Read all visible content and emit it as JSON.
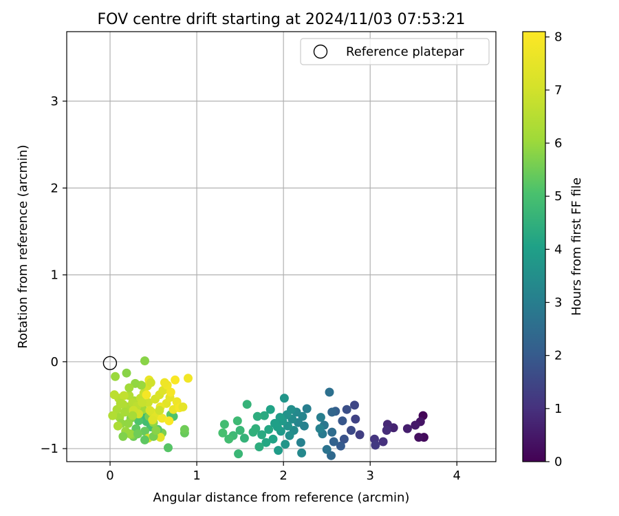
{
  "chart_data": {
    "type": "scatter",
    "title": "FOV centre drift starting at 2024/11/03 07:53:21",
    "xlabel": "Angular distance from reference (arcmin)",
    "ylabel": "Rotation from reference (arcmin)",
    "xlim": [
      -0.5,
      4.45
    ],
    "ylim": [
      -1.15,
      3.8
    ],
    "xticks": [
      "0",
      "1",
      "2",
      "3",
      "4"
    ],
    "yticks": [
      "−1",
      "0",
      "1",
      "2",
      "3"
    ],
    "grid": true,
    "legend": {
      "placement": "top-right",
      "entries": [
        "Reference platepar"
      ]
    },
    "colorbar": {
      "label": "Hours from first FF file",
      "min": 0,
      "max": 8.1,
      "ticks": [
        "0",
        "1",
        "2",
        "3",
        "4",
        "5",
        "6",
        "7",
        "8"
      ],
      "colormap": "viridis"
    },
    "reference_point": {
      "x": 0,
      "y": 0
    },
    "points": [
      [
        3.61,
        -0.62,
        0.1
      ],
      [
        3.62,
        -0.87,
        0.2
      ],
      [
        3.56,
        -0.87,
        0.3
      ],
      [
        3.58,
        -0.69,
        0.4
      ],
      [
        3.52,
        -0.73,
        0.5
      ],
      [
        3.43,
        -0.77,
        0.6
      ],
      [
        3.27,
        -0.76,
        0.7
      ],
      [
        3.2,
        -0.72,
        0.8
      ],
      [
        3.19,
        -0.79,
        0.9
      ],
      [
        3.15,
        -0.92,
        1.0
      ],
      [
        3.05,
        -0.89,
        1.1
      ],
      [
        3.06,
        -0.96,
        1.2
      ],
      [
        2.88,
        -0.84,
        1.3
      ],
      [
        2.83,
        -0.66,
        1.4
      ],
      [
        2.82,
        -0.5,
        1.5
      ],
      [
        2.78,
        -0.79,
        1.6
      ],
      [
        2.73,
        -0.55,
        1.7
      ],
      [
        2.7,
        -0.89,
        1.8
      ],
      [
        2.68,
        -0.68,
        1.9
      ],
      [
        2.66,
        -0.97,
        2.0
      ],
      [
        2.6,
        -0.57,
        2.1
      ],
      [
        2.58,
        -0.92,
        2.2
      ],
      [
        2.56,
        -0.58,
        2.3
      ],
      [
        2.55,
        -1.08,
        2.4
      ],
      [
        2.56,
        -0.81,
        2.5
      ],
      [
        2.53,
        -0.35,
        2.6
      ],
      [
        2.5,
        -1.01,
        2.7
      ],
      [
        2.47,
        -0.73,
        2.8
      ],
      [
        2.45,
        -0.83,
        2.9
      ],
      [
        2.43,
        -0.64,
        3.0
      ],
      [
        2.42,
        -0.77,
        3.1
      ],
      [
        2.27,
        -0.54,
        3.0
      ],
      [
        2.24,
        -0.74,
        3.1
      ],
      [
        2.22,
        -0.63,
        3.2
      ],
      [
        2.2,
        -0.93,
        3.1
      ],
      [
        2.21,
        -1.05,
        3.3
      ],
      [
        2.17,
        -0.7,
        3.2
      ],
      [
        2.15,
        -0.58,
        3.3
      ],
      [
        2.12,
        -0.79,
        3.4
      ],
      [
        2.1,
        -0.66,
        3.4
      ],
      [
        2.09,
        -0.55,
        3.5
      ],
      [
        2.07,
        -0.85,
        3.5
      ],
      [
        2.05,
        -0.74,
        3.6
      ],
      [
        2.04,
        -0.61,
        3.6
      ],
      [
        2.02,
        -0.95,
        3.7
      ],
      [
        2.01,
        -0.42,
        3.7
      ],
      [
        1.99,
        -0.68,
        3.8
      ],
      [
        1.97,
        -0.8,
        3.8
      ],
      [
        1.96,
        -0.64,
        3.9
      ],
      [
        1.94,
        -1.02,
        3.9
      ],
      [
        1.93,
        -0.75,
        4.0
      ],
      [
        1.9,
        -0.71,
        4.0
      ],
      [
        1.88,
        -0.89,
        4.1
      ],
      [
        1.85,
        -0.55,
        4.1
      ],
      [
        1.83,
        -0.78,
        4.2
      ],
      [
        1.8,
        -0.93,
        4.2
      ],
      [
        1.78,
        -0.62,
        4.3
      ],
      [
        1.75,
        -0.84,
        4.3
      ],
      [
        1.72,
        -0.98,
        4.4
      ],
      [
        1.7,
        -0.63,
        4.4
      ],
      [
        1.68,
        -0.77,
        4.5
      ],
      [
        1.65,
        -0.81,
        4.5
      ],
      [
        1.58,
        -0.49,
        4.6
      ],
      [
        1.55,
        -0.88,
        4.6
      ],
      [
        1.5,
        -0.79,
        4.7
      ],
      [
        1.48,
        -1.06,
        4.7
      ],
      [
        1.47,
        -0.68,
        4.8
      ],
      [
        1.42,
        -0.85,
        4.8
      ],
      [
        1.37,
        -0.89,
        4.9
      ],
      [
        1.32,
        -0.72,
        4.9
      ],
      [
        1.3,
        -0.82,
        5.0
      ],
      [
        0.67,
        -0.99,
        5.2
      ],
      [
        0.7,
        -0.61,
        5.3
      ],
      [
        0.73,
        -0.63,
        5.1
      ],
      [
        0.86,
        -0.82,
        5.4
      ],
      [
        0.86,
        -0.78,
        5.5
      ],
      [
        0.6,
        -0.82,
        5.6
      ],
      [
        0.55,
        -0.78,
        5.2
      ],
      [
        0.47,
        -0.75,
        5.0
      ],
      [
        0.42,
        -0.69,
        4.9
      ],
      [
        0.38,
        -0.61,
        4.8
      ],
      [
        0.33,
        -0.68,
        5.1
      ],
      [
        0.3,
        -0.77,
        5.3
      ],
      [
        0.27,
        -0.86,
        5.5
      ],
      [
        0.24,
        -0.65,
        5.7
      ],
      [
        0.21,
        -0.71,
        5.9
      ],
      [
        0.18,
        -0.8,
        6.0
      ],
      [
        0.25,
        -0.84,
        5.8
      ],
      [
        0.4,
        -0.8,
        5.4
      ],
      [
        0.45,
        -0.63,
        5.6
      ],
      [
        0.5,
        -0.7,
        5.9
      ],
      [
        0.38,
        -0.55,
        6.1
      ],
      [
        0.28,
        -0.45,
        6.2
      ],
      [
        0.2,
        -0.52,
        6.3
      ],
      [
        0.15,
        -0.49,
        6.4
      ],
      [
        0.1,
        -0.42,
        6.5
      ],
      [
        0.05,
        -0.38,
        6.6
      ],
      [
        0.08,
        -0.55,
        6.3
      ],
      [
        0.11,
        -0.64,
        6.1
      ],
      [
        0.13,
        -0.71,
        5.9
      ],
      [
        0.17,
        -0.58,
        6.2
      ],
      [
        0.22,
        -0.39,
        6.4
      ],
      [
        0.26,
        -0.47,
        6.5
      ],
      [
        0.31,
        -0.51,
        6.6
      ],
      [
        0.35,
        -0.42,
        6.7
      ],
      [
        0.39,
        -0.36,
        6.8
      ],
      [
        0.44,
        -0.47,
        6.9
      ],
      [
        0.48,
        -0.58,
        7.0
      ],
      [
        0.52,
        -0.43,
        7.1
      ],
      [
        0.57,
        -0.38,
        7.2
      ],
      [
        0.61,
        -0.33,
        7.3
      ],
      [
        0.65,
        -0.48,
        7.4
      ],
      [
        0.69,
        -0.41,
        7.5
      ],
      [
        0.73,
        -0.55,
        7.6
      ],
      [
        0.77,
        -0.46,
        7.7
      ],
      [
        0.9,
        -0.19,
        7.8
      ],
      [
        0.8,
        -0.53,
        7.9
      ],
      [
        0.75,
        -0.21,
        8.0
      ],
      [
        0.7,
        -0.35,
        7.9
      ],
      [
        0.66,
        -0.27,
        7.8
      ],
      [
        0.63,
        -0.24,
        7.7
      ],
      [
        0.58,
        -0.52,
        7.6
      ],
      [
        0.55,
        -0.62,
        7.5
      ],
      [
        0.52,
        -0.6,
        7.4
      ],
      [
        0.49,
        -0.67,
        7.3
      ],
      [
        0.46,
        -0.56,
        7.2
      ],
      [
        0.43,
        -0.28,
        7.1
      ],
      [
        0.45,
        -0.21,
        7.6
      ],
      [
        0.47,
        -0.24,
        7.0
      ],
      [
        0.36,
        -0.27,
        6.0
      ],
      [
        0.29,
        -0.25,
        5.9
      ],
      [
        0.19,
        -0.13,
        5.8
      ],
      [
        0.22,
        -0.3,
        6.1
      ],
      [
        0.06,
        -0.17,
        6.0
      ],
      [
        0.4,
        0.01,
        5.8
      ],
      [
        0.58,
        -0.87,
        7.4
      ],
      [
        0.44,
        -0.88,
        7.1
      ],
      [
        0.23,
        -0.83,
        6.0
      ],
      [
        0.15,
        -0.86,
        5.7
      ],
      [
        0.09,
        -0.74,
        6.3
      ],
      [
        0.03,
        -0.62,
        6.4
      ],
      [
        0.32,
        -0.83,
        5.5
      ],
      [
        0.4,
        -0.9,
        5.3
      ],
      [
        0.5,
        -0.86,
        5.6
      ],
      [
        0.33,
        -0.6,
        7.0
      ],
      [
        0.37,
        -0.47,
        6.8
      ],
      [
        0.27,
        -0.56,
        6.9
      ],
      [
        0.16,
        -0.39,
        6.7
      ],
      [
        0.6,
        -0.65,
        7.8
      ],
      [
        0.68,
        -0.68,
        8.0
      ],
      [
        0.84,
        -0.52,
        7.5
      ],
      [
        0.42,
        -0.38,
        7.9
      ],
      [
        0.53,
        -0.79,
        5.8
      ],
      [
        0.12,
        -0.48,
        6.4
      ],
      [
        0.57,
        -0.56,
        6.9
      ],
      [
        0.26,
        -0.62,
        6.2
      ]
    ]
  }
}
